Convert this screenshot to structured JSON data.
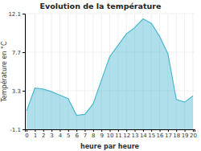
{
  "chart_data": {
    "type": "area",
    "title": "Evolution de la température",
    "xlabel": "heure par heure",
    "ylabel": "Température en °C",
    "x": [
      0,
      1,
      2,
      3,
      4,
      5,
      6,
      7,
      8,
      9,
      10,
      11,
      12,
      13,
      14,
      15,
      16,
      17,
      18,
      19,
      20
    ],
    "values": [
      1.0,
      3.6,
      3.5,
      3.2,
      2.8,
      2.4,
      0.5,
      0.6,
      1.8,
      4.5,
      7.2,
      8.5,
      9.8,
      10.5,
      11.5,
      11.0,
      9.5,
      7.5,
      2.3,
      2.0,
      2.7
    ],
    "xlim": [
      -0.2,
      20.2
    ],
    "xticks": [
      0,
      1,
      2,
      3,
      4,
      5,
      6,
      7,
      8,
      9,
      10,
      11,
      12,
      13,
      14,
      15,
      16,
      17,
      18,
      19,
      20
    ],
    "ylim": [
      -1.1,
      12.1
    ],
    "yticks": [
      -1.1,
      3.3,
      7.7,
      12.1
    ],
    "color": "#4cb8d0",
    "grid": true
  }
}
